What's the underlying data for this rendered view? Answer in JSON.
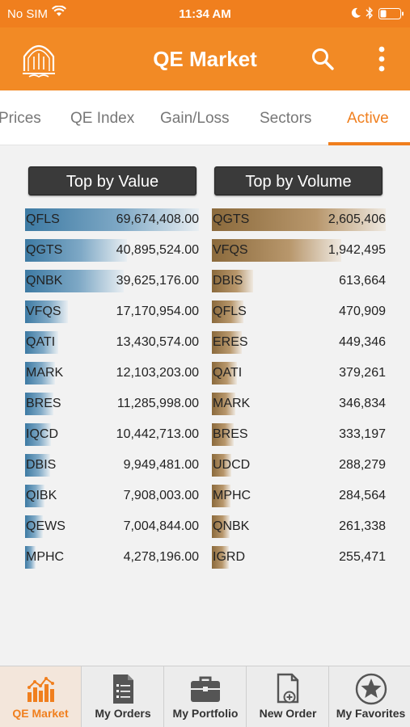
{
  "status_bar": {
    "carrier": "No SIM",
    "time": "11:34 AM"
  },
  "header": {
    "title": "QE Market",
    "logo": "arch-logo",
    "search_icon": "search-icon",
    "more_icon": "more-vert-icon"
  },
  "tabs": [
    {
      "label": "Prices"
    },
    {
      "label": "QE Index"
    },
    {
      "label": "Gain/Loss"
    },
    {
      "label": "Sectors"
    },
    {
      "label": "Active"
    }
  ],
  "active_tab": "Active",
  "top_by_value": {
    "title": "Top by Value",
    "color": "#3d7aa3",
    "rows": [
      {
        "symbol": "QFLS",
        "value": "69,674,408.00",
        "amount": 69674408
      },
      {
        "symbol": "QGTS",
        "value": "40,895,524.00",
        "amount": 40895524
      },
      {
        "symbol": "QNBK",
        "value": "39,625,176.00",
        "amount": 39625176
      },
      {
        "symbol": "VFQS",
        "value": "17,170,954.00",
        "amount": 17170954
      },
      {
        "symbol": "QATI",
        "value": "13,430,574.00",
        "amount": 13430574
      },
      {
        "symbol": "MARK",
        "value": "12,103,203.00",
        "amount": 12103203
      },
      {
        "symbol": "BRES",
        "value": "11,285,998.00",
        "amount": 11285998
      },
      {
        "symbol": "IQCD",
        "value": "10,442,713.00",
        "amount": 10442713
      },
      {
        "symbol": "DBIS",
        "value": "9,949,481.00",
        "amount": 9949481
      },
      {
        "symbol": "QIBK",
        "value": "7,908,003.00",
        "amount": 7908003
      },
      {
        "symbol": "QEWS",
        "value": "7,004,844.00",
        "amount": 7004844
      },
      {
        "symbol": "MPHC",
        "value": "4,278,196.00",
        "amount": 4278196
      }
    ]
  },
  "top_by_volume": {
    "title": "Top by Volume",
    "color": "#8b6a3c",
    "rows": [
      {
        "symbol": "QGTS",
        "value": "2,605,406",
        "amount": 2605406
      },
      {
        "symbol": "VFQS",
        "value": "1,942,495",
        "amount": 1942495
      },
      {
        "symbol": "DBIS",
        "value": "613,664",
        "amount": 613664
      },
      {
        "symbol": "QFLS",
        "value": "470,909",
        "amount": 470909
      },
      {
        "symbol": "ERES",
        "value": "449,346",
        "amount": 449346
      },
      {
        "symbol": "QATI",
        "value": "379,261",
        "amount": 379261
      },
      {
        "symbol": "MARK",
        "value": "346,834",
        "amount": 346834
      },
      {
        "symbol": "BRES",
        "value": "333,197",
        "amount": 333197
      },
      {
        "symbol": "UDCD",
        "value": "288,279",
        "amount": 288279
      },
      {
        "symbol": "MPHC",
        "value": "284,564",
        "amount": 284564
      },
      {
        "symbol": "QNBK",
        "value": "261,338",
        "amount": 261338
      },
      {
        "symbol": "IGRD",
        "value": "255,471",
        "amount": 255471
      }
    ]
  },
  "bottom_nav": [
    {
      "label": "QE Market",
      "icon": "bar-chart-icon",
      "active": true
    },
    {
      "label": "My Orders",
      "icon": "orders-doc-icon",
      "active": false
    },
    {
      "label": "My Portfolio",
      "icon": "briefcase-icon",
      "active": false
    },
    {
      "label": "New Order",
      "icon": "new-order-doc-icon",
      "active": false
    },
    {
      "label": "My Favorites",
      "icon": "star-icon",
      "active": false
    }
  ]
}
